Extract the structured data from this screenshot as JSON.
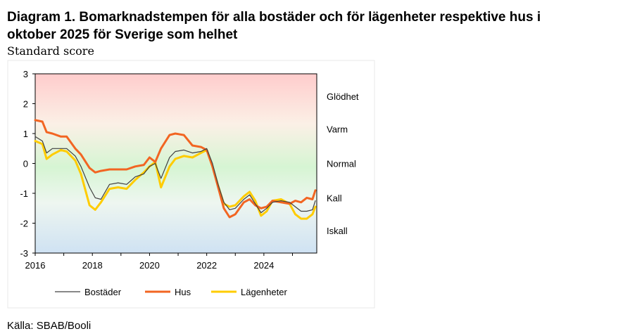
{
  "title_line1": "Diagram 1. Bomarknadstempen för alla bostäder och för lägenheter respektive hus i",
  "title_line2": "oktober 2025 för Sverige som helhet",
  "ylabel": "Standard score",
  "source": "Källa: SBAB/Booli",
  "colors": {
    "bostader": "#404040",
    "hus": "#f26522",
    "lagenheter": "#ffcc00"
  },
  "chart_data": {
    "type": "line",
    "ylim": [
      -3,
      3
    ],
    "xlim": [
      2016.0,
      2025.85
    ],
    "yticks": [
      "3",
      "2",
      "1",
      "0",
      "-1",
      "-2",
      "-3"
    ],
    "xticks": [
      "2016",
      "2018",
      "2020",
      "2022",
      "2024"
    ],
    "zones": [
      "Glödhet",
      "Varm",
      "Normal",
      "Kall",
      "Iskall"
    ],
    "legend": [
      "Bostäder",
      "Hus",
      "Lägenheter"
    ],
    "legend_position": "bottom",
    "grid": false,
    "series": [
      {
        "name": "Bostäder",
        "x": [
          2016.0,
          2016.25,
          2016.4,
          2016.6,
          2016.9,
          2017.1,
          2017.4,
          2017.6,
          2017.9,
          2018.1,
          2018.3,
          2018.6,
          2018.9,
          2019.2,
          2019.5,
          2019.8,
          2020.0,
          2020.2,
          2020.4,
          2020.7,
          2020.9,
          2021.2,
          2021.5,
          2021.8,
          2022.0,
          2022.2,
          2022.4,
          2022.6,
          2022.8,
          2023.0,
          2023.3,
          2023.5,
          2023.7,
          2023.9,
          2024.1,
          2024.3,
          2024.6,
          2024.9,
          2025.1,
          2025.3,
          2025.5,
          2025.7,
          2025.8
        ],
        "y": [
          0.9,
          0.75,
          0.35,
          0.5,
          0.5,
          0.5,
          0.25,
          -0.1,
          -0.8,
          -1.15,
          -1.2,
          -0.7,
          -0.65,
          -0.7,
          -0.45,
          -0.35,
          -0.1,
          0.0,
          -0.5,
          0.2,
          0.4,
          0.45,
          0.35,
          0.4,
          0.5,
          0.0,
          -0.7,
          -1.3,
          -1.55,
          -1.5,
          -1.2,
          -1.05,
          -1.35,
          -1.65,
          -1.5,
          -1.3,
          -1.25,
          -1.3,
          -1.45,
          -1.6,
          -1.6,
          -1.55,
          -1.25
        ]
      },
      {
        "name": "Hus",
        "x": [
          2016.0,
          2016.25,
          2016.4,
          2016.6,
          2016.9,
          2017.1,
          2017.4,
          2017.6,
          2017.9,
          2018.1,
          2018.3,
          2018.6,
          2018.9,
          2019.2,
          2019.5,
          2019.8,
          2020.0,
          2020.2,
          2020.4,
          2020.7,
          2020.9,
          2021.2,
          2021.5,
          2021.8,
          2022.0,
          2022.2,
          2022.4,
          2022.6,
          2022.8,
          2023.0,
          2023.3,
          2023.5,
          2023.7,
          2023.9,
          2024.1,
          2024.3,
          2024.6,
          2024.9,
          2025.1,
          2025.3,
          2025.5,
          2025.7,
          2025.8
        ],
        "y": [
          1.45,
          1.4,
          1.05,
          1.0,
          0.9,
          0.9,
          0.5,
          0.3,
          -0.15,
          -0.3,
          -0.25,
          -0.2,
          -0.2,
          -0.2,
          -0.1,
          -0.05,
          0.2,
          0.05,
          0.5,
          0.95,
          1.0,
          0.95,
          0.6,
          0.55,
          0.45,
          -0.1,
          -0.8,
          -1.5,
          -1.8,
          -1.7,
          -1.3,
          -1.2,
          -1.4,
          -1.5,
          -1.45,
          -1.25,
          -1.3,
          -1.35,
          -1.25,
          -1.3,
          -1.15,
          -1.2,
          -0.9
        ]
      },
      {
        "name": "Lägenheter",
        "x": [
          2016.0,
          2016.25,
          2016.4,
          2016.6,
          2016.9,
          2017.1,
          2017.4,
          2017.6,
          2017.9,
          2018.1,
          2018.3,
          2018.6,
          2018.9,
          2019.2,
          2019.5,
          2019.8,
          2020.0,
          2020.2,
          2020.4,
          2020.7,
          2020.9,
          2021.2,
          2021.5,
          2021.8,
          2022.0,
          2022.2,
          2022.4,
          2022.6,
          2022.8,
          2023.0,
          2023.3,
          2023.5,
          2023.7,
          2023.9,
          2024.1,
          2024.3,
          2024.6,
          2024.9,
          2025.1,
          2025.3,
          2025.5,
          2025.7,
          2025.8
        ],
        "y": [
          0.75,
          0.65,
          0.15,
          0.3,
          0.45,
          0.4,
          0.1,
          -0.35,
          -1.4,
          -1.55,
          -1.3,
          -0.85,
          -0.8,
          -0.85,
          -0.55,
          -0.3,
          -0.1,
          0.05,
          -0.8,
          -0.1,
          0.15,
          0.25,
          0.2,
          0.35,
          0.45,
          -0.1,
          -0.75,
          -1.35,
          -1.45,
          -1.4,
          -1.1,
          -0.95,
          -1.25,
          -1.75,
          -1.6,
          -1.25,
          -1.2,
          -1.35,
          -1.7,
          -1.85,
          -1.85,
          -1.7,
          -1.45
        ]
      }
    ]
  }
}
